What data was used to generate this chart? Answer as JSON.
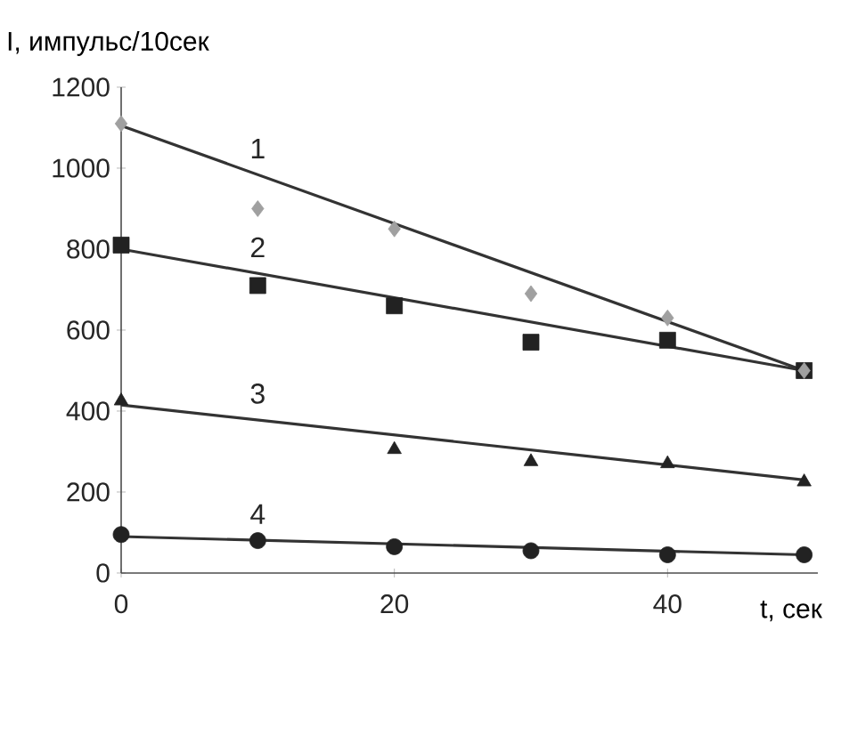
{
  "chart_data": {
    "type": "scatter",
    "xlabel": "t, сек",
    "ylabel": "I, импульс/10сек",
    "xlim": [
      0,
      51
    ],
    "ylim": [
      0,
      1200
    ],
    "xticks": [
      0,
      20,
      40
    ],
    "yticks": [
      0,
      200,
      400,
      600,
      800,
      1000,
      1200
    ],
    "grid": false,
    "series": [
      {
        "marker": "diamond",
        "color": "#a0a0a0",
        "x": [
          0,
          10,
          20,
          30,
          40,
          50
        ],
        "values": [
          1110,
          900,
          850,
          690,
          630,
          500
        ]
      },
      {
        "marker": "square",
        "color": "#222222",
        "x": [
          0,
          10,
          20,
          30,
          40,
          50
        ],
        "values": [
          810,
          710,
          660,
          570,
          575,
          500
        ]
      },
      {
        "marker": "triangle",
        "color": "#222222",
        "x": [
          0,
          20,
          30,
          40,
          50
        ],
        "values": [
          425,
          305,
          275,
          270,
          225
        ]
      },
      {
        "marker": "circle",
        "color": "#222222",
        "x": [
          0,
          10,
          20,
          30,
          40,
          50
        ],
        "values": [
          95,
          80,
          65,
          55,
          45,
          45
        ]
      },
      {
        "type": "line",
        "name": "1",
        "marker": "none",
        "color": "#333333",
        "x": [
          0,
          50
        ],
        "values": [
          1105,
          500
        ]
      },
      {
        "type": "line",
        "name": "2",
        "marker": "none",
        "color": "#333333",
        "x": [
          0,
          50
        ],
        "values": [
          800,
          500
        ]
      },
      {
        "type": "line",
        "name": "3",
        "marker": "none",
        "color": "#333333",
        "x": [
          0,
          50
        ],
        "values": [
          415,
          230
        ]
      },
      {
        "type": "line",
        "name": "4",
        "marker": "none",
        "color": "#333333",
        "x": [
          0,
          50
        ],
        "values": [
          90,
          45
        ]
      }
    ]
  }
}
